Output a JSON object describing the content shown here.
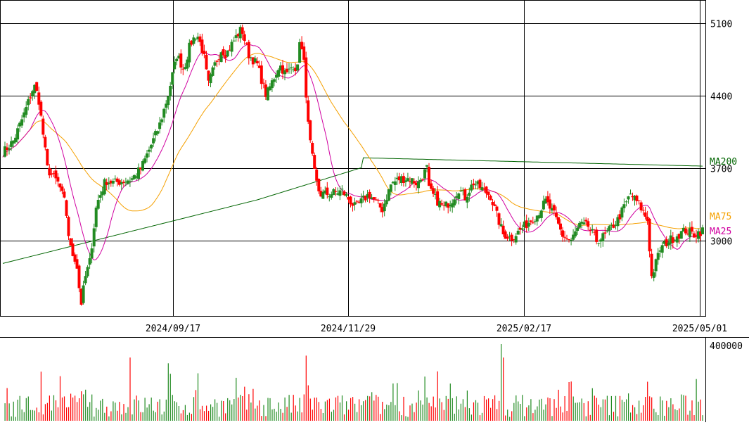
{
  "chart_data": {
    "type": "candlestick",
    "price": {
      "yticks": [
        3000,
        3700,
        4400,
        5100
      ],
      "ylim": [
        2300,
        5300
      ],
      "colors": {
        "up": "#228b22",
        "down": "#ff0000"
      },
      "ma": [
        {
          "name": "MA200",
          "color": "#006400"
        },
        {
          "name": "MA75",
          "color": "#f5a000"
        },
        {
          "name": "MA25",
          "color": "#d000a0"
        }
      ]
    },
    "xticks": [
      "2024/09/17",
      "2024/11/29",
      "2025/02/17",
      "2025/05/01"
    ],
    "volume": {
      "ytick_label": "400000",
      "ymax": 400000
    }
  }
}
